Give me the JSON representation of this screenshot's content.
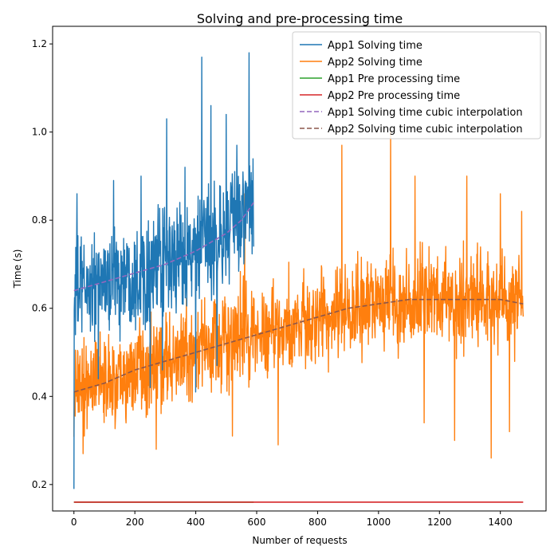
{
  "chart_data": {
    "type": "line",
    "title": "Solving and pre-processing time",
    "xlabel": "Number of requests",
    "ylabel": "Time (s)",
    "xlim": [
      -70,
      1550
    ],
    "ylim": [
      0.14,
      1.24
    ],
    "x_ticks": [
      0,
      200,
      400,
      600,
      800,
      1000,
      1200,
      1400
    ],
    "y_ticks": [
      0.2,
      0.4,
      0.6,
      0.8,
      1.0,
      1.2
    ],
    "x_tick_labels": [
      "0",
      "200",
      "400",
      "600",
      "800",
      "1000",
      "1200",
      "1400"
    ],
    "y_tick_labels": [
      "0.2",
      "0.4",
      "0.6",
      "0.8",
      "1.0",
      "1.2"
    ],
    "grid": false,
    "legend_position": "top-right",
    "series": [
      {
        "name": "App1 Solving time",
        "color": "#1f77b4",
        "style": "solid",
        "noisy": true,
        "n_points": 590,
        "x_range": [
          0,
          590
        ],
        "trend_x": [
          0,
          100,
          200,
          300,
          400,
          500,
          590
        ],
        "trend_y": [
          0.64,
          0.66,
          0.68,
          0.7,
          0.73,
          0.77,
          0.84
        ],
        "noise_amplitude": 0.11,
        "peaks": [
          [
            0,
            0.19
          ],
          [
            5,
            0.54
          ],
          [
            10,
            0.86
          ],
          [
            130,
            0.89
          ],
          [
            220,
            0.9
          ],
          [
            305,
            1.03
          ],
          [
            365,
            0.92
          ],
          [
            420,
            1.17
          ],
          [
            450,
            1.06
          ],
          [
            500,
            1.04
          ],
          [
            535,
            0.97
          ],
          [
            575,
            1.18
          ]
        ],
        "troughs": [
          [
            80,
            0.44
          ],
          [
            250,
            0.42
          ],
          [
            290,
            0.46
          ],
          [
            400,
            0.41
          ],
          [
            470,
            0.47
          ],
          [
            590,
            0.74
          ]
        ]
      },
      {
        "name": "App2 Solving time",
        "color": "#ff7f0e",
        "style": "solid",
        "noisy": true,
        "n_points": 1475,
        "x_range": [
          0,
          1475
        ],
        "trend_x": [
          0,
          200,
          400,
          600,
          800,
          1000,
          1200,
          1300,
          1475
        ],
        "trend_y": [
          0.41,
          0.46,
          0.5,
          0.54,
          0.58,
          0.61,
          0.62,
          0.62,
          0.61
        ],
        "noise_amplitude": 0.1,
        "peaks": [
          [
            520,
            0.87
          ],
          [
            560,
            0.86
          ],
          [
            880,
            0.97
          ],
          [
            1040,
            1.0
          ],
          [
            1120,
            0.9
          ],
          [
            1290,
            0.9
          ],
          [
            1400,
            0.86
          ],
          [
            1470,
            0.82
          ]
        ],
        "troughs": [
          [
            30,
            0.27
          ],
          [
            270,
            0.28
          ],
          [
            520,
            0.31
          ],
          [
            670,
            0.29
          ],
          [
            1150,
            0.34
          ],
          [
            1250,
            0.3
          ],
          [
            1370,
            0.26
          ],
          [
            1430,
            0.32
          ]
        ]
      },
      {
        "name": "App1 Pre processing time",
        "color": "#2ca02c",
        "style": "solid",
        "noisy": false,
        "x": [
          0,
          590
        ],
        "y": [
          0.16,
          0.16
        ]
      },
      {
        "name": "App2 Pre processing time",
        "color": "#d62728",
        "style": "solid",
        "noisy": false,
        "x": [
          0,
          1475
        ],
        "y": [
          0.16,
          0.16
        ]
      },
      {
        "name": "App1 Solving time cubic interpolation",
        "color": "#9467bd",
        "style": "dashed",
        "noisy": false,
        "x": [
          0,
          100,
          200,
          300,
          400,
          450,
          500,
          550,
          590
        ],
        "y": [
          0.64,
          0.66,
          0.68,
          0.7,
          0.73,
          0.75,
          0.77,
          0.8,
          0.84
        ]
      },
      {
        "name": "App2 Solving time cubic interpolation",
        "color": "#8c564b",
        "style": "dashed",
        "noisy": false,
        "x": [
          0,
          100,
          200,
          300,
          400,
          500,
          600,
          700,
          800,
          900,
          1000,
          1100,
          1200,
          1300,
          1400,
          1475
        ],
        "y": [
          0.41,
          0.43,
          0.46,
          0.48,
          0.5,
          0.52,
          0.54,
          0.56,
          0.58,
          0.6,
          0.61,
          0.62,
          0.62,
          0.62,
          0.62,
          0.61
        ]
      }
    ]
  }
}
